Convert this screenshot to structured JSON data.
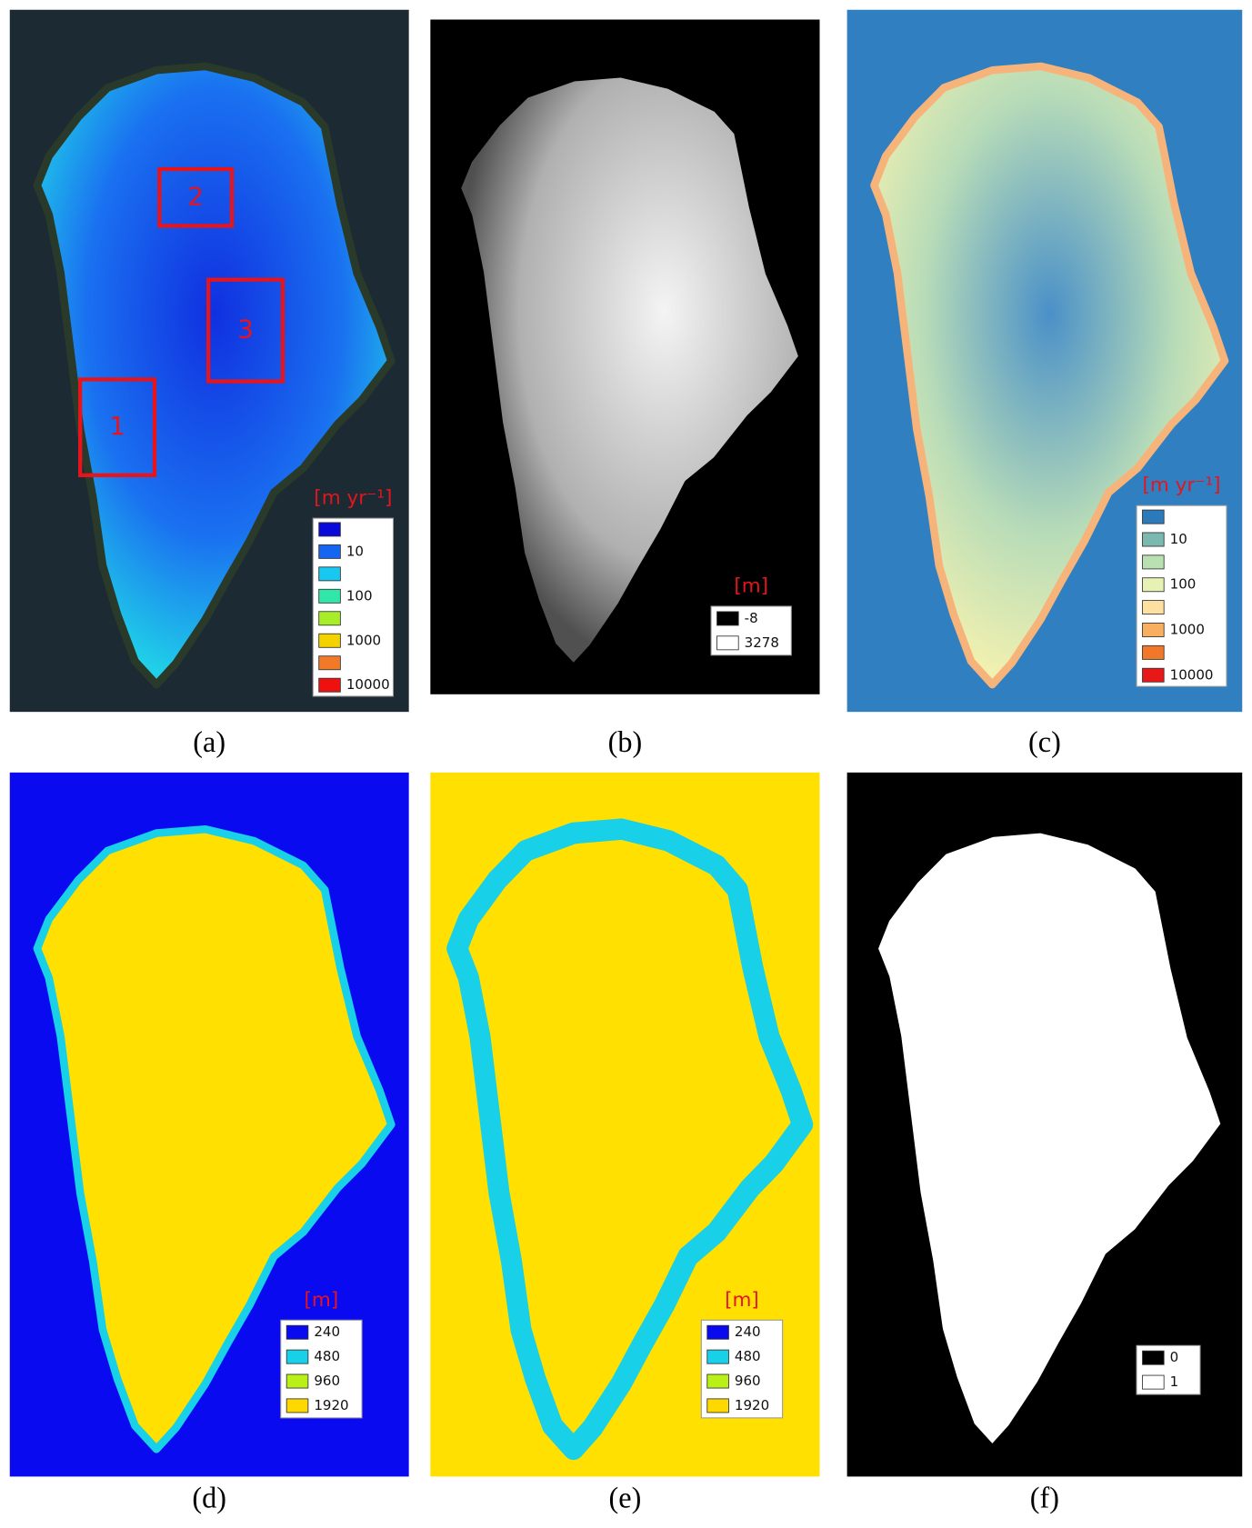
{
  "panels": [
    {
      "caption": "(a)",
      "boxes": [
        "2",
        "3",
        "1"
      ],
      "legend": {
        "title": "[m yr⁻¹]",
        "items": [
          {
            "color": "#0a0ad8",
            "label": null
          },
          {
            "color": "#1565f0",
            "label": "10"
          },
          {
            "color": "#18c8f0",
            "label": null
          },
          {
            "color": "#30e6a8",
            "label": "100"
          },
          {
            "color": "#a8ee28",
            "label": null
          },
          {
            "color": "#f4d200",
            "label": "1000"
          },
          {
            "color": "#f07a28",
            "label": null
          },
          {
            "color": "#f01010",
            "label": "10000"
          }
        ]
      }
    },
    {
      "caption": "(b)",
      "legend": {
        "title": "[m]",
        "items": [
          {
            "color": "#000000",
            "label": "-8"
          },
          {
            "color": "#ffffff",
            "label": "3278"
          }
        ]
      }
    },
    {
      "caption": "(c)",
      "legend": {
        "title": "[m yr⁻¹]",
        "items": [
          {
            "color": "#2b7bba",
            "label": null
          },
          {
            "color": "#7ab8b0",
            "label": "10"
          },
          {
            "color": "#b8e0b0",
            "label": null
          },
          {
            "color": "#e6f2b4",
            "label": "100"
          },
          {
            "color": "#fde0a0",
            "label": null
          },
          {
            "color": "#f8b060",
            "label": "1000"
          },
          {
            "color": "#f07828",
            "label": null
          },
          {
            "color": "#e81818",
            "label": "10000"
          }
        ]
      }
    },
    {
      "caption": "(d)",
      "legend": {
        "title": "[m]",
        "items": [
          {
            "color": "#0a0af0",
            "label": "240"
          },
          {
            "color": "#18d0e8",
            "label": "480"
          },
          {
            "color": "#b8f018",
            "label": "960"
          },
          {
            "color": "#ffd800",
            "label": "1920"
          }
        ]
      }
    },
    {
      "caption": "(e)",
      "legend": {
        "title": "[m]",
        "items": [
          {
            "color": "#0a0af0",
            "label": "240"
          },
          {
            "color": "#18d0e8",
            "label": "480"
          },
          {
            "color": "#b8f018",
            "label": "960"
          },
          {
            "color": "#ffd800",
            "label": "1920"
          }
        ]
      }
    },
    {
      "caption": "(f)",
      "legend": {
        "title": null,
        "items": [
          {
            "color": "#000000",
            "label": "0"
          },
          {
            "color": "#ffffff",
            "label": "1"
          }
        ]
      }
    }
  ]
}
